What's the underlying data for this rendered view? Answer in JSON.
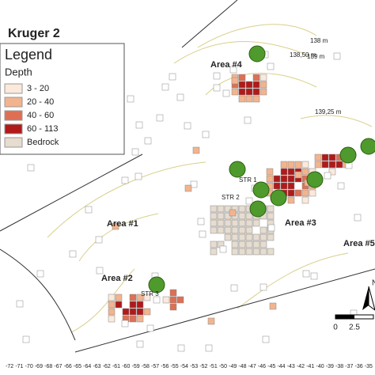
{
  "header": {
    "title": "Kruger 2"
  },
  "legend": {
    "title": "Legend",
    "subtitle": "Depth",
    "items": [
      {
        "label": "3 - 20",
        "color": "#fbe9dc"
      },
      {
        "label": "20 - 40",
        "color": "#f2b48e"
      },
      {
        "label": "40 - 60",
        "color": "#de6f54"
      },
      {
        "label": "60 - 113",
        "color": "#b01a1a"
      },
      {
        "label": "Bedrock",
        "color": "#e6dccf"
      }
    ]
  },
  "areas": [
    "Area #1",
    "Area #2",
    "Area #3",
    "Area #4",
    "Area #5"
  ],
  "structures": [
    "STR 1",
    "STR 2",
    "STR 3"
  ],
  "contours": [
    "138 m",
    "138,50 m",
    "139 m",
    "139,25 m"
  ],
  "scale": [
    "0",
    "2.5"
  ],
  "north": "N",
  "axis_labels": [
    "-72",
    "-71",
    "-70",
    "-69",
    "-68",
    "-67",
    "-66",
    "-65",
    "-64",
    "-63",
    "-62",
    "-61",
    "-60",
    "-59",
    "-58",
    "-57",
    "-56",
    "-55",
    "-54",
    "-53",
    "-52",
    "-51",
    "-50",
    "-49",
    "-48",
    "-47",
    "-46",
    "-45",
    "-44",
    "-43",
    "-42",
    "-41",
    "-40",
    "-39",
    "-38",
    "-37",
    "-36",
    "-35"
  ]
}
